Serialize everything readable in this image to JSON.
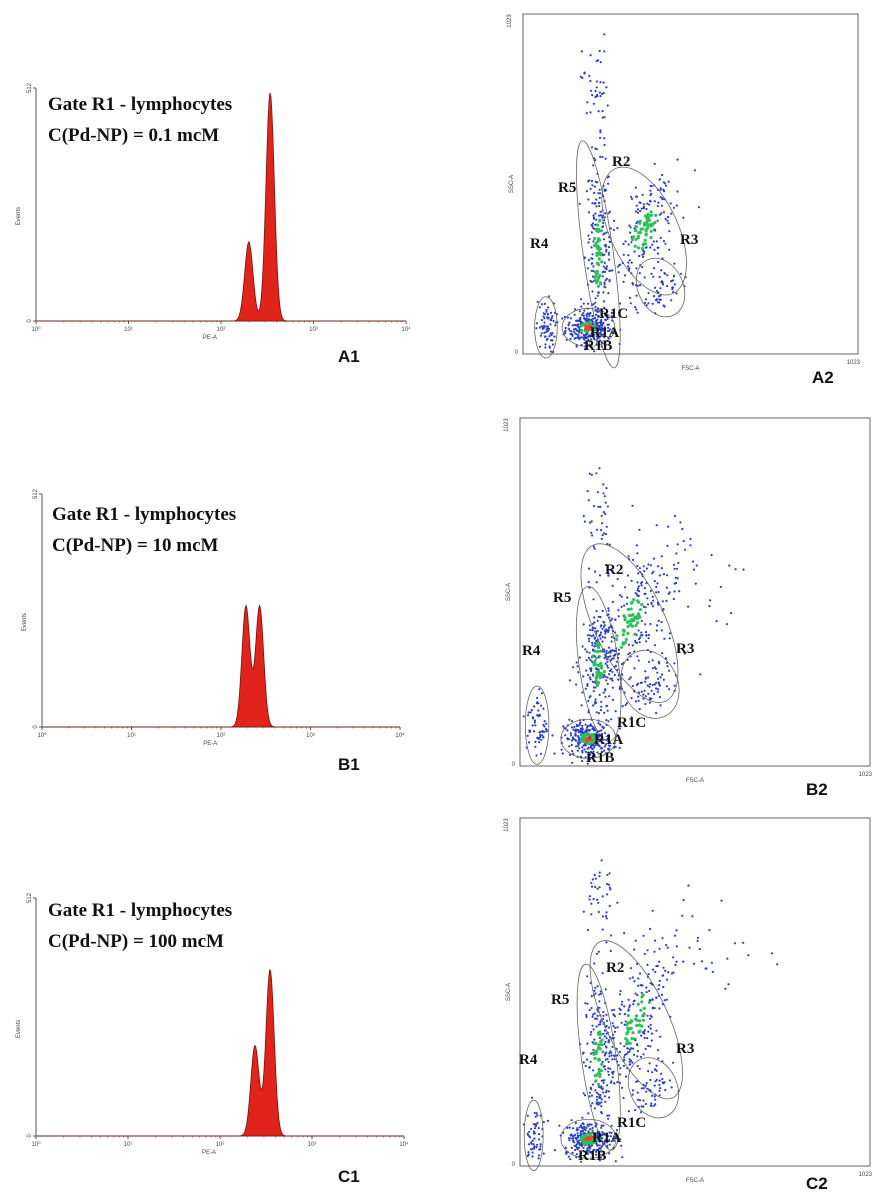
{
  "colors": {
    "histogram_fill": "#e0241c",
    "density_low": "#2b3fc8",
    "density_mid": "#2fbf5a",
    "density_high": "#e8482a",
    "gate_line": "#666666"
  },
  "chart_data": [
    {
      "id": "A1",
      "type": "area",
      "panel_label": "A1",
      "annotation": [
        "Gate R1 - lymphocytes",
        "C(Pd-NP) = 0.1 mcM"
      ],
      "xlabel": "PE-A",
      "ylabel": "Events",
      "xscale": "log",
      "xticks": [
        "10⁰",
        "10¹",
        "10²",
        "10³",
        "10⁴"
      ],
      "xlim": [
        1,
        10000
      ],
      "yticks": [
        "0",
        "512"
      ],
      "ylim": [
        0,
        512
      ],
      "peaks": [
        {
          "x": 200,
          "height": 0.34
        },
        {
          "x": 340,
          "height": 0.98
        }
      ]
    },
    {
      "id": "B1",
      "type": "area",
      "panel_label": "B1",
      "annotation": [
        "Gate R1 - lymphocytes",
        "C(Pd-NP) = 10 mcM"
      ],
      "xlabel": "PE-A",
      "ylabel": "Events",
      "xscale": "log",
      "xticks": [
        "10⁰",
        "10¹",
        "10²",
        "10³",
        "10⁴"
      ],
      "xlim": [
        1,
        10000
      ],
      "yticks": [
        "0",
        "512"
      ],
      "ylim": [
        0,
        512
      ],
      "peaks": [
        {
          "x": 190,
          "height": 0.52
        },
        {
          "x": 270,
          "height": 0.52
        }
      ]
    },
    {
      "id": "C1",
      "type": "area",
      "panel_label": "C1",
      "annotation": [
        "Gate R1 - lymphocytes",
        "C(Pd-NP) = 100 mcM"
      ],
      "xlabel": "PE-A",
      "ylabel": "Events",
      "xscale": "log",
      "xticks": [
        "10⁰",
        "10¹",
        "10²",
        "10³",
        "10⁴"
      ],
      "xlim": [
        1,
        10000
      ],
      "yticks": [
        "0",
        "512"
      ],
      "ylim": [
        0,
        512
      ],
      "peaks": [
        {
          "x": 240,
          "height": 0.38
        },
        {
          "x": 350,
          "height": 0.7
        }
      ]
    },
    {
      "id": "A2",
      "type": "scatter",
      "panel_label": "A2",
      "xlabel": "FSC-A",
      "ylabel": "SSC-A",
      "xlim": [
        0,
        1023
      ],
      "ylim": [
        0,
        1023
      ],
      "xticks": [
        "0",
        "1023"
      ],
      "yticks": [
        "0",
        "1023"
      ],
      "gate_labels": [
        "R1A",
        "R1B",
        "R1C",
        "R2",
        "R3",
        "R4",
        "R5"
      ],
      "clusters": [
        {
          "name": "R1",
          "x": 200,
          "y": 80,
          "sx": 35,
          "sy": 25,
          "n": 260
        },
        {
          "name": "R5",
          "x": 230,
          "y": 300,
          "sx": 20,
          "sy": 150,
          "n": 220
        },
        {
          "name": "R2",
          "x": 370,
          "y": 370,
          "sx": 45,
          "sy": 90,
          "n": 200
        },
        {
          "name": "R3",
          "x": 420,
          "y": 200,
          "sx": 30,
          "sy": 40,
          "n": 60
        },
        {
          "name": "R4",
          "x": 70,
          "y": 80,
          "sx": 15,
          "sy": 40,
          "n": 70
        },
        {
          "name": "top",
          "x": 220,
          "y": 800,
          "sx": 20,
          "sy": 80,
          "n": 40
        }
      ]
    },
    {
      "id": "B2",
      "type": "scatter",
      "panel_label": "B2",
      "xlabel": "FSC-A",
      "ylabel": "SSC-A",
      "xlim": [
        0,
        1023
      ],
      "ylim": [
        0,
        1023
      ],
      "xticks": [
        "0",
        "1023"
      ],
      "yticks": [
        "0",
        "1023"
      ],
      "gate_labels": [
        "R1A",
        "R1B",
        "R1C",
        "R2",
        "R3",
        "R4",
        "R5"
      ],
      "clusters": [
        {
          "name": "R1",
          "x": 200,
          "y": 80,
          "sx": 35,
          "sy": 25,
          "n": 260
        },
        {
          "name": "R5",
          "x": 230,
          "y": 300,
          "sx": 25,
          "sy": 100,
          "n": 200
        },
        {
          "name": "R2",
          "x": 320,
          "y": 420,
          "sx": 45,
          "sy": 110,
          "n": 240
        },
        {
          "name": "R3",
          "x": 380,
          "y": 240,
          "sx": 35,
          "sy": 45,
          "n": 80
        },
        {
          "name": "R4",
          "x": 50,
          "y": 120,
          "sx": 15,
          "sy": 50,
          "n": 60
        },
        {
          "name": "top",
          "x": 230,
          "y": 750,
          "sx": 25,
          "sy": 100,
          "n": 40
        },
        {
          "name": "spray",
          "x": 500,
          "y": 550,
          "sx": 90,
          "sy": 110,
          "n": 40
        }
      ]
    },
    {
      "id": "C2",
      "type": "scatter",
      "panel_label": "C2",
      "xlabel": "FSC-A",
      "ylabel": "SSC-A",
      "xlim": [
        0,
        1023
      ],
      "ylim": [
        0,
        1023
      ],
      "xticks": [
        "0",
        "1023"
      ],
      "yticks": [
        "0",
        "1023"
      ],
      "gate_labels": [
        "R1A",
        "R1B",
        "R1C",
        "R2",
        "R3",
        "R4",
        "R5"
      ],
      "clusters": [
        {
          "name": "R1",
          "x": 200,
          "y": 80,
          "sx": 35,
          "sy": 25,
          "n": 260
        },
        {
          "name": "R5",
          "x": 230,
          "y": 320,
          "sx": 22,
          "sy": 120,
          "n": 200
        },
        {
          "name": "R2",
          "x": 340,
          "y": 430,
          "sx": 40,
          "sy": 110,
          "n": 230
        },
        {
          "name": "R3",
          "x": 390,
          "y": 230,
          "sx": 30,
          "sy": 40,
          "n": 60
        },
        {
          "name": "R4",
          "x": 40,
          "y": 90,
          "sx": 12,
          "sy": 45,
          "n": 60
        },
        {
          "name": "top",
          "x": 230,
          "y": 780,
          "sx": 22,
          "sy": 80,
          "n": 40
        },
        {
          "name": "spray",
          "x": 520,
          "y": 640,
          "sx": 90,
          "sy": 80,
          "n": 35
        }
      ]
    }
  ]
}
